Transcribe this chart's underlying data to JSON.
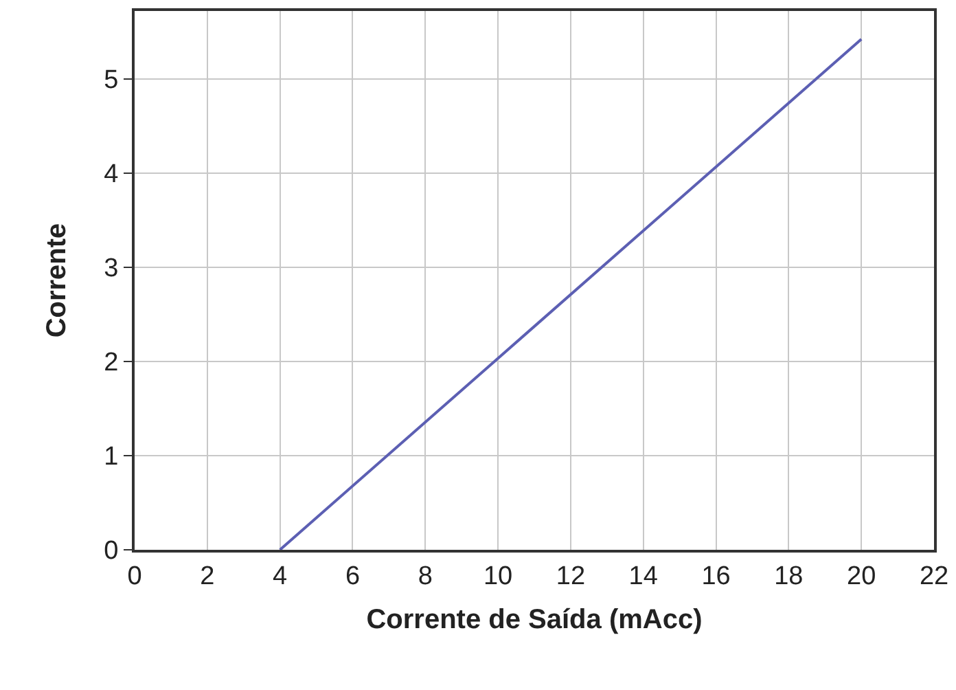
{
  "chart_data": {
    "type": "line",
    "xlabel": "Corrente de Saída (mAcc)",
    "ylabel": "Corrente",
    "series": [
      {
        "color": "#5c5fb3",
        "x": [
          4,
          20
        ],
        "values": [
          0,
          5.42
        ]
      }
    ],
    "xlim": [
      0,
      22
    ],
    "xticks": [
      0,
      2,
      4,
      6,
      8,
      10,
      12,
      14,
      16,
      18,
      20,
      22
    ],
    "ylim": [
      0,
      5.72
    ],
    "yticks": [
      0,
      1,
      2,
      3,
      4,
      5
    ],
    "grid": true,
    "marker": "none",
    "line_style": "solid"
  }
}
